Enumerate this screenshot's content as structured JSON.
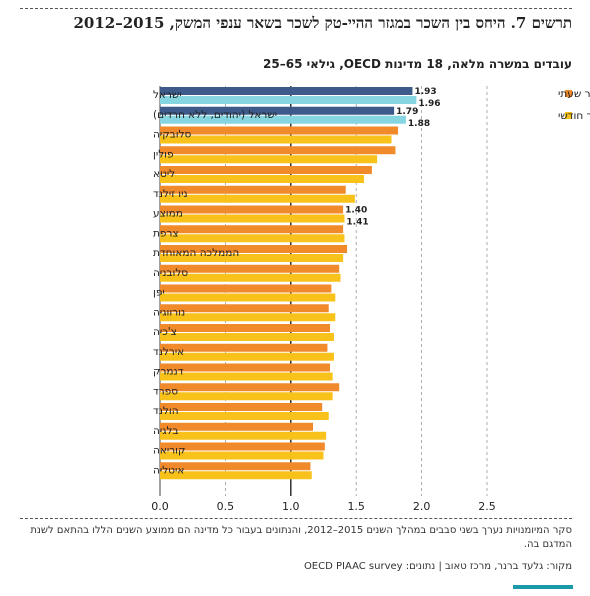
{
  "title": "תרשים 7. היחס בין השכר במגזר ההיי-טק לשכר בשאר ענפי המשק, 2015–2012",
  "subtitle": "עובדים במשרה מלאה, 18 מדינות OECD, גילאי 65–25",
  "note": "סקר המיומנויות נערך בשני סבבים במהלך השנים 2015–2012, והנתונים בעבור כל מדינה הם ממוצע השנים הללו בהתאם לשנת המדגם בה.",
  "source": "מקור: גלעד ברנר, מרכז טאוב | נתונים: OECD PIAAC survey",
  "colors": {
    "hourly": "#f08a2b",
    "monthly": "#f9c21b",
    "israel_hourly": "#3d5a8a",
    "israel_monthly": "#85d6e0",
    "accent": "#1a9aa8"
  },
  "chart_data": {
    "type": "bar",
    "orientation": "horizontal",
    "categories": [
      "ישראל",
      "ישראל (יהודים, ללא חרדים)",
      "סלובקיה",
      "פולין",
      "ליטא",
      "ניו זילנד",
      "ממוצע",
      "צרפת",
      "הממלכה המאוחדת",
      "סלובניה",
      "יפן",
      "נורווגיה",
      "צ'כיה",
      "אירלנד",
      "דנמרק",
      "ספרד",
      "הולנד",
      "בלגיה",
      "קוריאה",
      "איטליה"
    ],
    "series": [
      {
        "name": "שכר שעתי",
        "values": [
          1.93,
          1.79,
          1.82,
          1.8,
          1.62,
          1.42,
          1.4,
          1.4,
          1.43,
          1.37,
          1.31,
          1.29,
          1.3,
          1.28,
          1.3,
          1.37,
          1.24,
          1.17,
          1.26,
          1.15
        ]
      },
      {
        "name": "שכר חודשי",
        "values": [
          1.96,
          1.88,
          1.77,
          1.66,
          1.56,
          1.49,
          1.41,
          1.41,
          1.4,
          1.38,
          1.34,
          1.34,
          1.33,
          1.33,
          1.32,
          1.32,
          1.29,
          1.27,
          1.25,
          1.16
        ]
      }
    ],
    "data_labels": [
      {
        "index": 0,
        "values": [
          "1.93",
          "1.96"
        ]
      },
      {
        "index": 1,
        "values": [
          "1.79",
          "1.88"
        ]
      },
      {
        "index": 6,
        "values": [
          "1.40",
          "1.41"
        ]
      }
    ],
    "xlim": [
      0,
      2.5
    ],
    "xticks": [
      "0.0",
      "0.5",
      "1.0",
      "1.5",
      "2.0",
      "2.5"
    ],
    "reference_line": 1.0,
    "legend": [
      {
        "label": "שכר שעתי",
        "series": 0
      },
      {
        "label": "שכר חודשי",
        "series": 1
      }
    ],
    "legend_position": "top-right",
    "grid": "vertical dashed"
  }
}
